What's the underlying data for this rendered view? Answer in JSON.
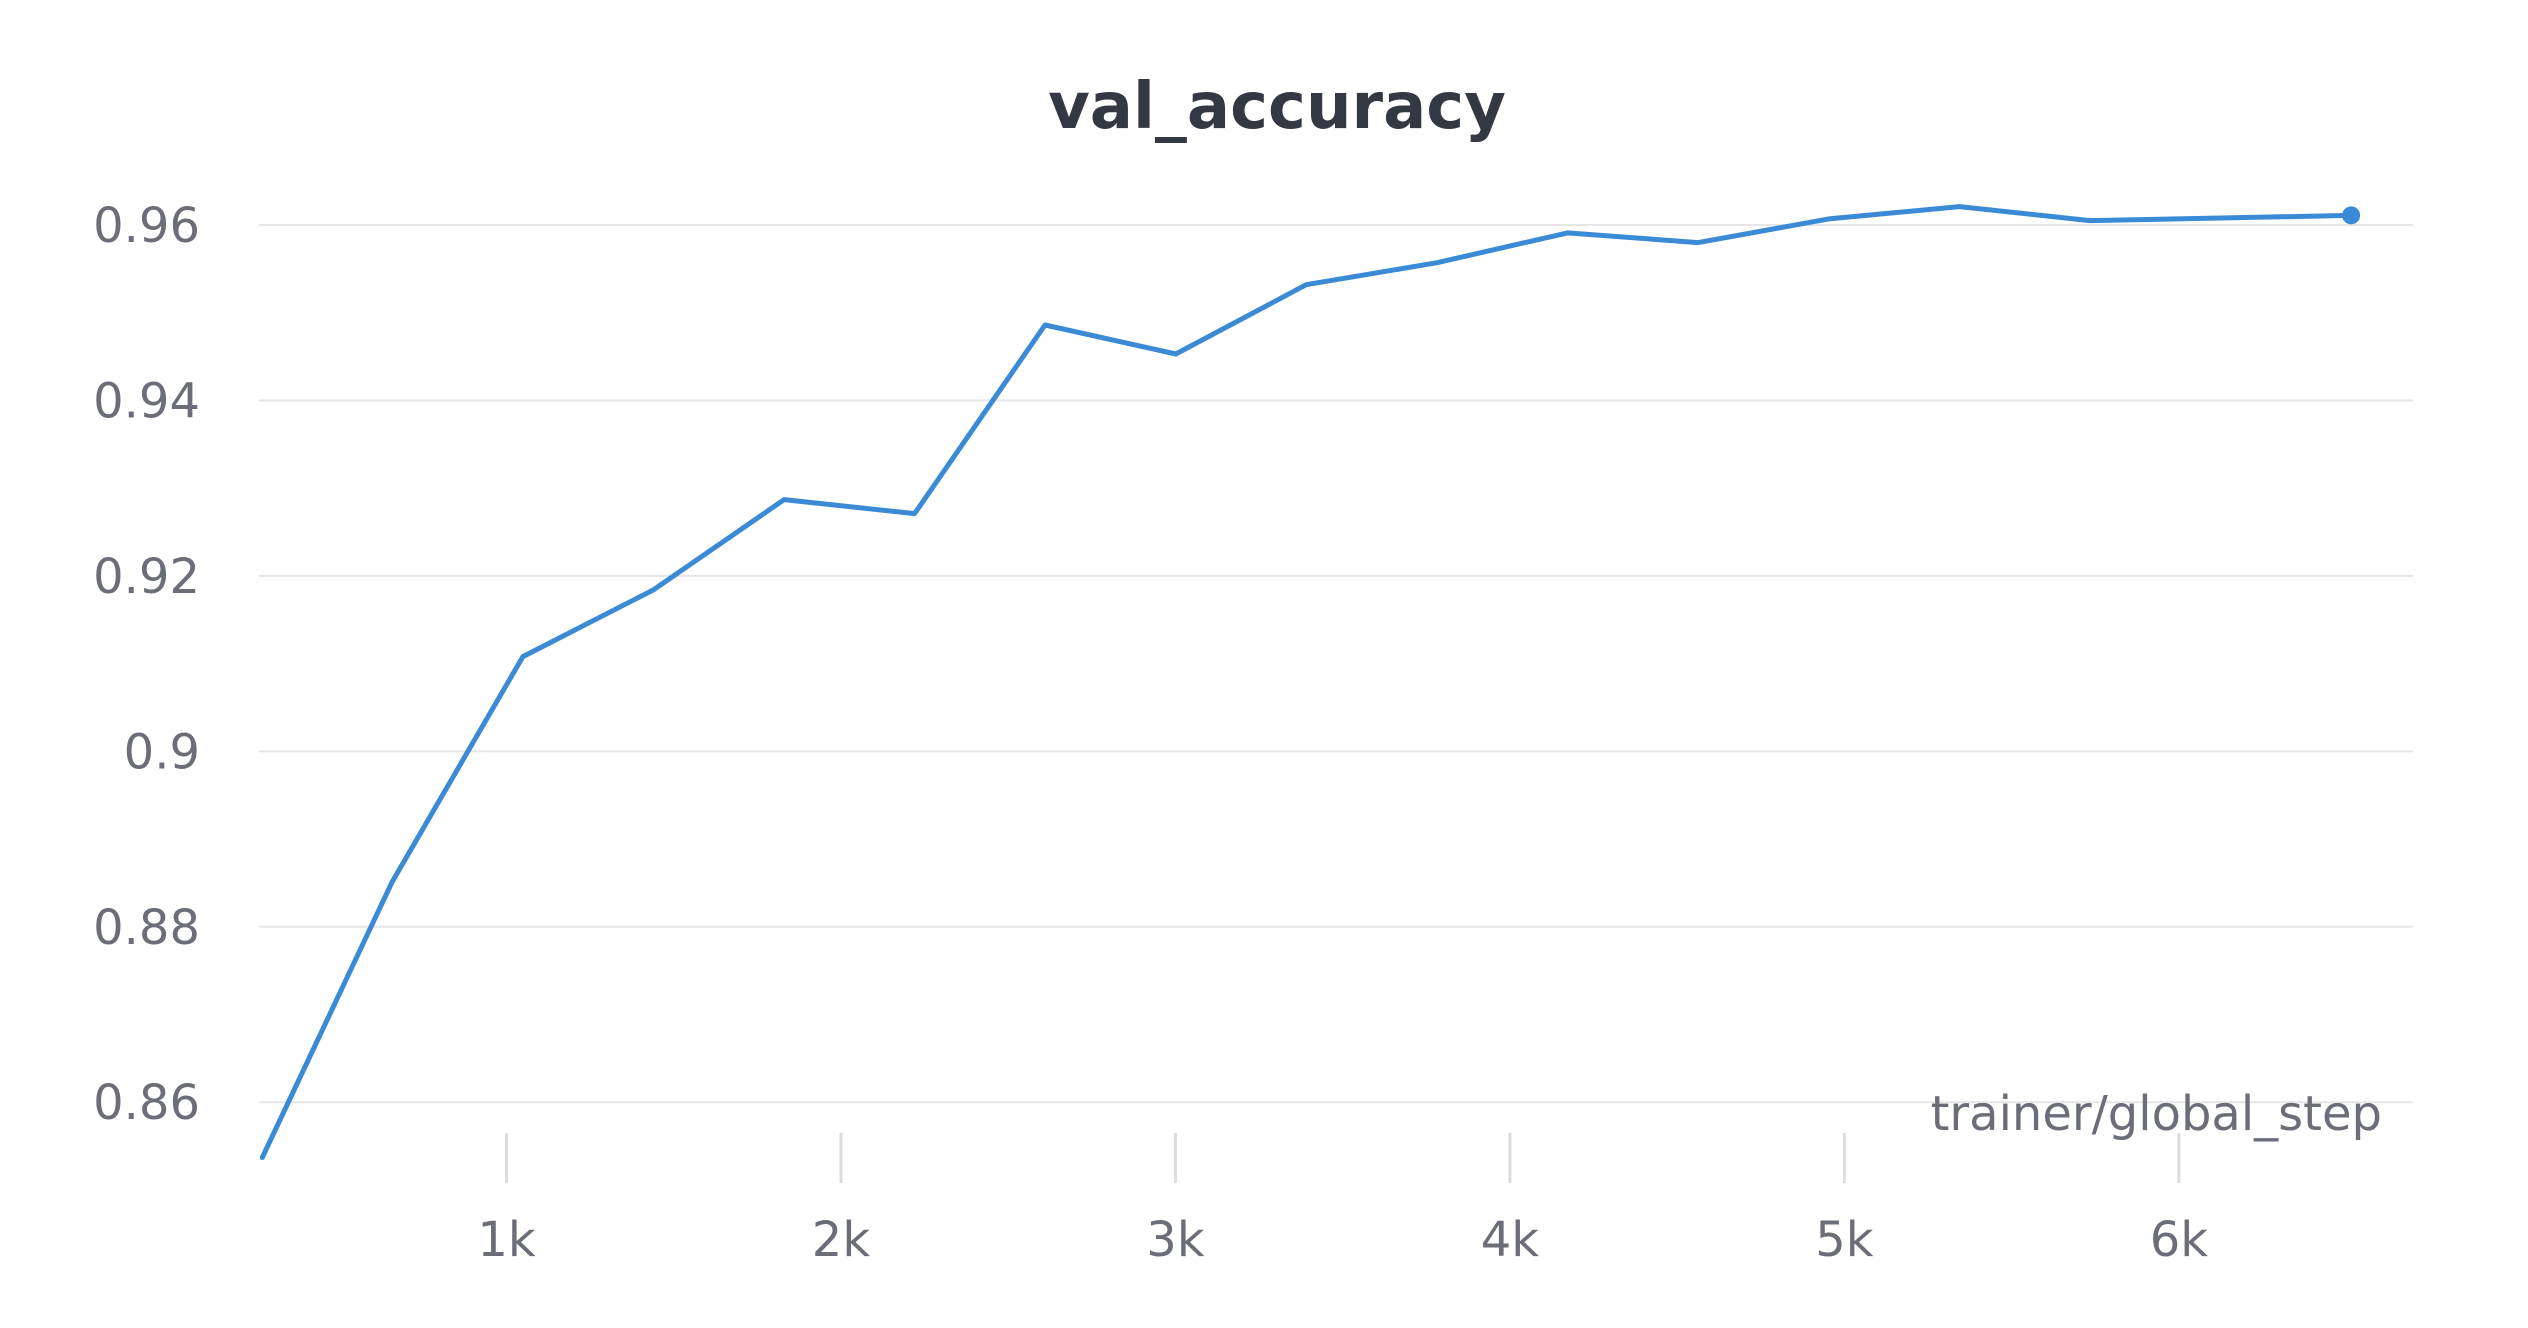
{
  "chart_data": {
    "type": "line",
    "title": "val_accuracy",
    "xlabel": "trainer/global_step",
    "ylabel": "",
    "xlim": [
      260,
      6700
    ],
    "ylim": [
      0.8525,
      0.9665
    ],
    "grid": true,
    "x_ticks": [
      1000,
      2000,
      3000,
      4000,
      5000,
      6000
    ],
    "x_tick_labels": [
      "1k",
      "2k",
      "3k",
      "4k",
      "5k",
      "6k"
    ],
    "y_ticks": [
      0.86,
      0.88,
      0.9,
      0.92,
      0.94,
      0.96
    ],
    "y_tick_labels": [
      "0.86",
      "0.88",
      "0.9",
      "0.92",
      "0.94",
      "0.96"
    ],
    "series": [
      {
        "color": "#3a8ad6",
        "end_marker": true,
        "x": [
          270,
          658,
          1049,
          1439,
          1830,
          2220,
          2610,
          3001,
          3391,
          3782,
          4172,
          4563,
          4953,
          5344,
          5734,
          6125,
          6515
        ],
        "y": [
          0.8537,
          0.8851,
          0.9108,
          0.9184,
          0.9287,
          0.9271,
          0.9486,
          0.9453,
          0.9532,
          0.9557,
          0.9591,
          0.958,
          0.9607,
          0.9621,
          0.9605,
          0.9608,
          0.9611
        ]
      }
    ]
  }
}
